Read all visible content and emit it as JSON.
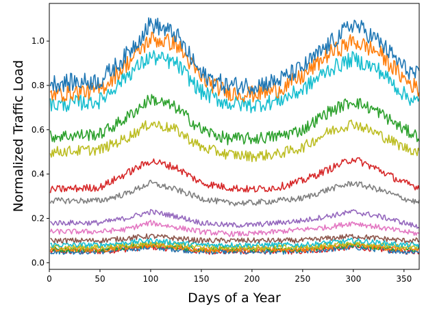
{
  "chart_data": {
    "type": "line",
    "title": "",
    "xlabel": "Days of a Year",
    "ylabel": "Normalized Traffic Load",
    "xlim": [
      0,
      365
    ],
    "ylim": [
      -0.03,
      1.17
    ],
    "xticks": [
      0,
      50,
      100,
      150,
      200,
      250,
      300,
      350
    ],
    "yticks": [
      0.0,
      0.2,
      0.4,
      0.6,
      0.8,
      1.0
    ],
    "xtick_labels": [
      "0",
      "50",
      "100",
      "150",
      "200",
      "250",
      "300",
      "350"
    ],
    "ytick_labels": [
      "0.0",
      "0.2",
      "0.4",
      "0.6",
      "0.8",
      "1.0"
    ],
    "grid": false,
    "legend": "none",
    "x_sample_days": [
      1,
      50,
      75,
      100,
      125,
      150,
      175,
      200,
      225,
      250,
      275,
      300,
      325,
      350,
      365
    ],
    "series": [
      {
        "color": "#1f77b4",
        "values": [
          0.81,
          0.82,
          0.93,
          1.08,
          1.03,
          0.85,
          0.8,
          0.8,
          0.82,
          0.88,
          0.98,
          1.08,
          1.0,
          0.88,
          0.84
        ]
      },
      {
        "color": "#ff7f0e",
        "values": [
          0.76,
          0.78,
          0.89,
          1.01,
          0.99,
          0.83,
          0.77,
          0.76,
          0.78,
          0.84,
          0.94,
          1.0,
          0.95,
          0.83,
          0.78
        ]
      },
      {
        "color": "#17becf",
        "values": [
          0.71,
          0.73,
          0.84,
          0.93,
          0.9,
          0.77,
          0.72,
          0.71,
          0.73,
          0.78,
          0.87,
          0.92,
          0.87,
          0.76,
          0.72
        ]
      },
      {
        "color": "#2ca02c",
        "values": [
          0.57,
          0.58,
          0.65,
          0.74,
          0.7,
          0.6,
          0.56,
          0.56,
          0.57,
          0.6,
          0.68,
          0.73,
          0.68,
          0.6,
          0.57
        ]
      },
      {
        "color": "#bcbd22",
        "values": [
          0.5,
          0.51,
          0.56,
          0.63,
          0.6,
          0.52,
          0.49,
          0.48,
          0.49,
          0.52,
          0.59,
          0.63,
          0.58,
          0.52,
          0.5
        ]
      },
      {
        "color": "#d62728",
        "values": [
          0.33,
          0.34,
          0.4,
          0.46,
          0.43,
          0.36,
          0.34,
          0.33,
          0.34,
          0.37,
          0.42,
          0.47,
          0.42,
          0.36,
          0.34
        ]
      },
      {
        "color": "#7f7f7f",
        "values": [
          0.28,
          0.28,
          0.31,
          0.36,
          0.33,
          0.29,
          0.27,
          0.27,
          0.28,
          0.29,
          0.33,
          0.36,
          0.33,
          0.29,
          0.27
        ]
      },
      {
        "color": "#9467bd",
        "values": [
          0.18,
          0.18,
          0.2,
          0.23,
          0.21,
          0.18,
          0.17,
          0.17,
          0.18,
          0.19,
          0.21,
          0.23,
          0.21,
          0.18,
          0.16
        ]
      },
      {
        "color": "#e377c2",
        "values": [
          0.14,
          0.14,
          0.15,
          0.18,
          0.16,
          0.14,
          0.13,
          0.13,
          0.14,
          0.15,
          0.16,
          0.18,
          0.16,
          0.14,
          0.13
        ]
      },
      {
        "color": "#8c564b",
        "values": [
          0.1,
          0.1,
          0.11,
          0.12,
          0.11,
          0.1,
          0.1,
          0.1,
          0.1,
          0.1,
          0.11,
          0.12,
          0.11,
          0.1,
          0.1
        ]
      },
      {
        "color": "#17becf",
        "values": [
          0.08,
          0.08,
          0.09,
          0.1,
          0.09,
          0.08,
          0.08,
          0.08,
          0.08,
          0.08,
          0.09,
          0.1,
          0.09,
          0.08,
          0.08
        ]
      },
      {
        "color": "#bcbd22",
        "values": [
          0.07,
          0.07,
          0.08,
          0.09,
          0.08,
          0.07,
          0.07,
          0.07,
          0.07,
          0.07,
          0.08,
          0.09,
          0.08,
          0.07,
          0.07
        ]
      },
      {
        "color": "#ff7f0e",
        "values": [
          0.06,
          0.06,
          0.07,
          0.08,
          0.07,
          0.06,
          0.06,
          0.06,
          0.06,
          0.06,
          0.07,
          0.08,
          0.07,
          0.06,
          0.06
        ]
      },
      {
        "color": "#2ca02c",
        "values": [
          0.06,
          0.06,
          0.07,
          0.08,
          0.07,
          0.06,
          0.06,
          0.06,
          0.06,
          0.06,
          0.07,
          0.08,
          0.07,
          0.06,
          0.06
        ]
      },
      {
        "color": "#1f77b4",
        "values": [
          0.05,
          0.05,
          0.06,
          0.07,
          0.06,
          0.05,
          0.05,
          0.05,
          0.05,
          0.05,
          0.06,
          0.07,
          0.06,
          0.05,
          0.05
        ]
      },
      {
        "color": "#d62728",
        "values": [
          0.05,
          0.05,
          0.06,
          0.07,
          0.06,
          0.05,
          0.05,
          0.05,
          0.05,
          0.05,
          0.06,
          0.07,
          0.06,
          0.05,
          0.05
        ]
      }
    ]
  }
}
